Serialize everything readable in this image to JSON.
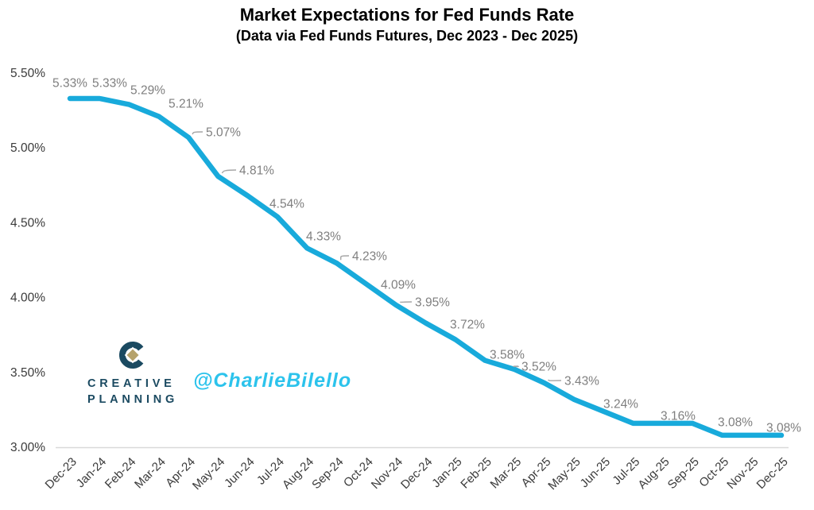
{
  "header": {
    "title": "Market Expectations for Fed Funds Rate",
    "subtitle": "(Data via Fed Funds Futures, Dec 2023 - Dec 2025)"
  },
  "logo": {
    "line1": "CREATIVE",
    "line2": "PLANNING",
    "text_color": "#1b4a61",
    "diamond_color": "#b5a26b"
  },
  "watermark": {
    "handle": "@CharlieBilello",
    "color": "#2cc3ec"
  },
  "chart_data": {
    "type": "line",
    "title": "Market Expectations for Fed Funds Rate",
    "subtitle": "(Data via Fed Funds Futures, Dec 2023 - Dec 2025)",
    "x": [
      "Dec-23",
      "Jan-24",
      "Feb-24",
      "Mar-24",
      "Apr-24",
      "May-24",
      "Jun-24",
      "Jul-24",
      "Aug-24",
      "Sep-24",
      "Oct-24",
      "Nov-24",
      "Dec-24",
      "Jan-25",
      "Feb-25",
      "Mar-25",
      "Apr-25",
      "May-25",
      "Jun-25",
      "Jul-25",
      "Aug-25",
      "Sep-25",
      "Oct-25",
      "Nov-25",
      "Dec-25"
    ],
    "values": [
      5.33,
      5.33,
      5.29,
      5.21,
      5.07,
      4.81,
      4.68,
      4.54,
      4.33,
      4.23,
      4.09,
      3.95,
      3.83,
      3.72,
      3.58,
      3.52,
      3.43,
      3.32,
      3.24,
      3.16,
      3.16,
      3.16,
      3.08,
      3.08,
      3.08
    ],
    "data_labels": [
      "5.33%",
      "5.33%",
      "5.29%",
      "5.21%",
      "5.07%",
      "4.81%",
      null,
      "4.54%",
      "4.33%",
      "4.23%",
      "4.09%",
      "3.95%",
      null,
      "3.72%",
      "3.58%",
      "3.52%",
      "3.43%",
      null,
      "3.24%",
      null,
      "3.16%",
      null,
      "3.08%",
      null,
      "3.08%"
    ],
    "y_ticks": [
      "5.50%",
      "5.00%",
      "4.50%",
      "4.00%",
      "3.50%",
      "3.00%"
    ],
    "ylim": [
      3.0,
      5.5
    ],
    "grid": false,
    "legend": "none",
    "line_color": "#18aadb",
    "label_color": "#7f7f7f",
    "leader_color": "#a6a6a6",
    "axis_line_color": "#d9d9d9",
    "axis_text_color": "#3b3b3b"
  }
}
